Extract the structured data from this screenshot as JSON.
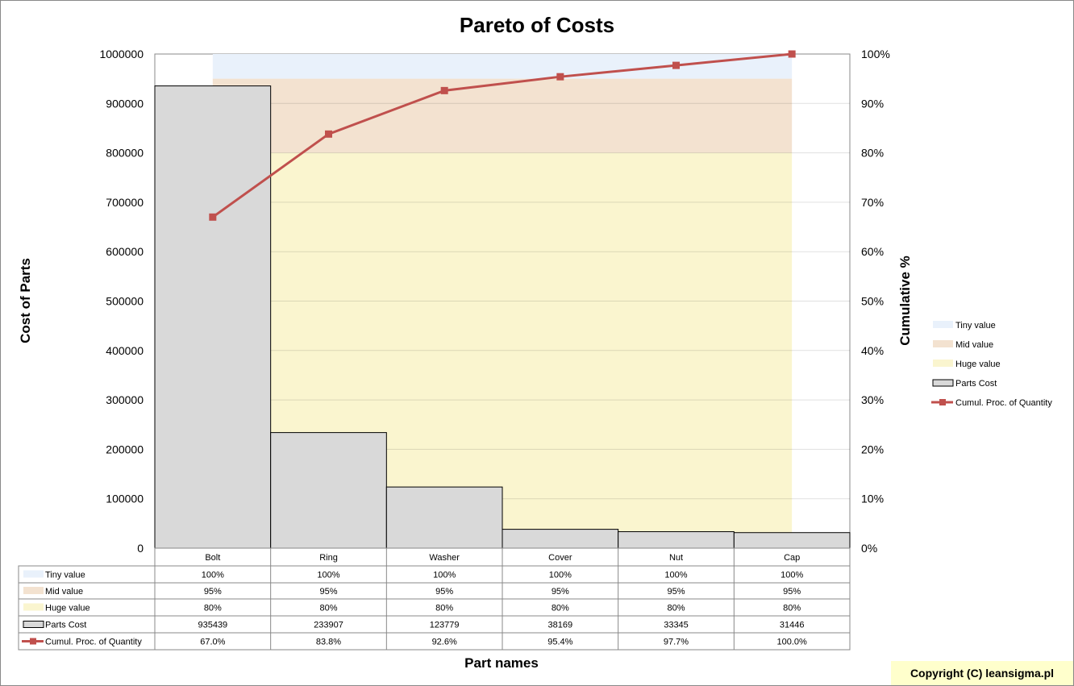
{
  "chart_data": {
    "type": "bar",
    "title": "Pareto of Costs",
    "xlabel": "Part names",
    "ylabel": "Cost of Parts",
    "y2label": "Cumulative %",
    "ylim": [
      0,
      1000000
    ],
    "y2lim": [
      0,
      100
    ],
    "yticks": [
      "0",
      "100000",
      "200000",
      "300000",
      "400000",
      "500000",
      "600000",
      "700000",
      "800000",
      "900000",
      "1000000"
    ],
    "y2ticks": [
      "0%",
      "10%",
      "20%",
      "30%",
      "40%",
      "50%",
      "60%",
      "70%",
      "80%",
      "90%",
      "100%"
    ],
    "categories": [
      "Bolt",
      "Ring",
      "Washer",
      "Cover",
      "Nut",
      "Cap"
    ],
    "series": [
      {
        "name": "Tiny value",
        "type": "band",
        "values": [
          100,
          100,
          100,
          100,
          100,
          100
        ],
        "labels": [
          "100%",
          "100%",
          "100%",
          "100%",
          "100%",
          "100%"
        ],
        "color": "#e9f1fb"
      },
      {
        "name": "Mid value",
        "type": "band",
        "values": [
          95,
          95,
          95,
          95,
          95,
          95
        ],
        "labels": [
          "95%",
          "95%",
          "95%",
          "95%",
          "95%",
          "95%"
        ],
        "color": "#f3e2d0"
      },
      {
        "name": "Huge value",
        "type": "band",
        "values": [
          80,
          80,
          80,
          80,
          80,
          80
        ],
        "labels": [
          "80%",
          "80%",
          "80%",
          "80%",
          "80%",
          "80%"
        ],
        "color": "#faf5cf"
      },
      {
        "name": "Parts Cost",
        "type": "bar",
        "values": [
          935439,
          233907,
          123779,
          38169,
          33345,
          31446
        ],
        "labels": [
          "935439",
          "233907",
          "123779",
          "38169",
          "33345",
          "31446"
        ],
        "color": "#d9d9d9"
      },
      {
        "name": "Cumul. Proc. of Quantity",
        "type": "line",
        "values": [
          67.0,
          83.8,
          92.6,
          95.4,
          97.7,
          100.0
        ],
        "labels": [
          "67.0%",
          "83.8%",
          "92.6%",
          "95.4%",
          "97.7%",
          "100.0%"
        ],
        "color": "#c0504d"
      }
    ],
    "legend": "right",
    "grid": true
  },
  "copyright": "Copyright (C) leansigma.pl"
}
